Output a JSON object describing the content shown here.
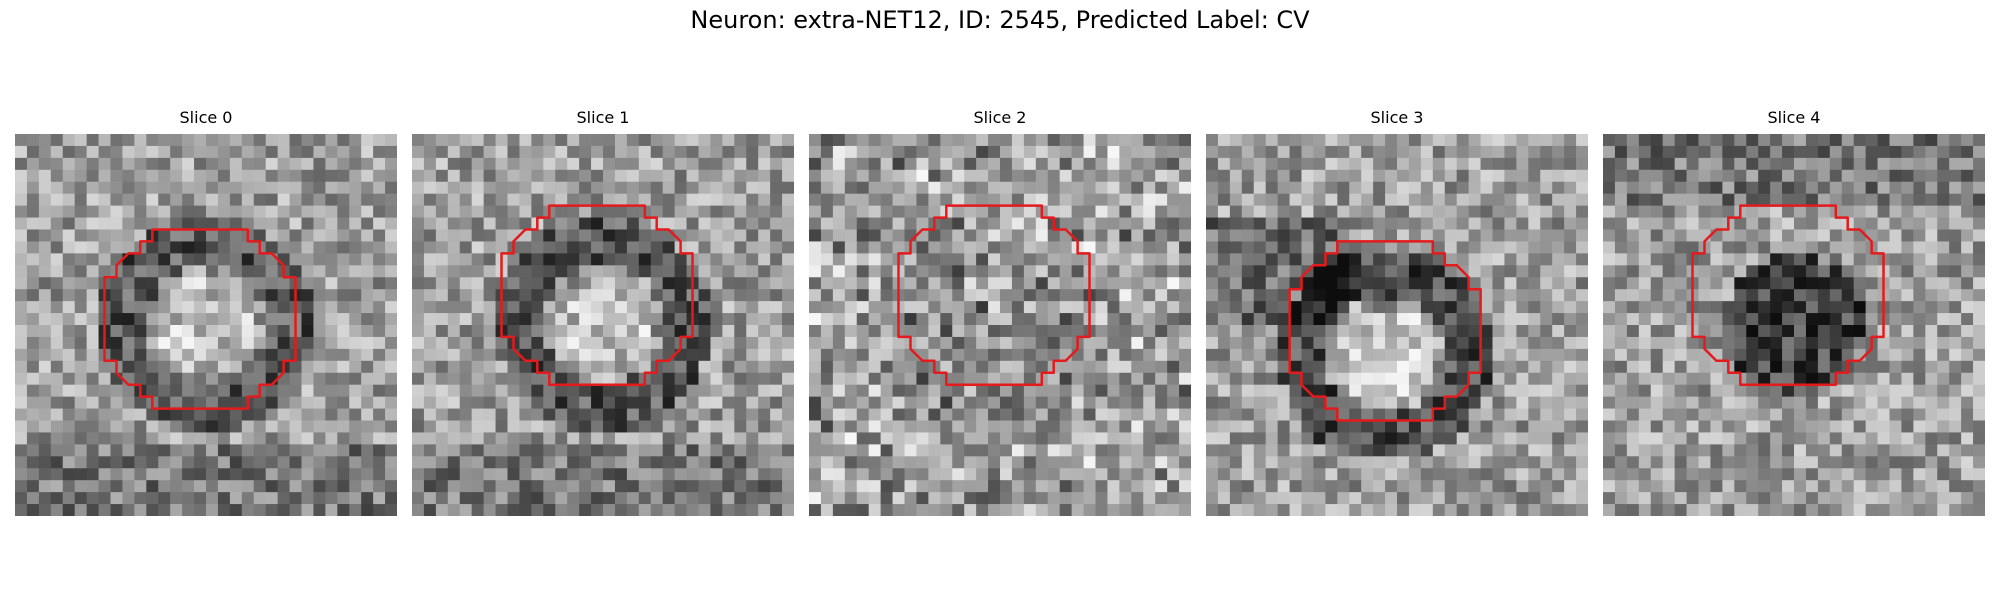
{
  "figure": {
    "title": "Neuron: extra-NET12, ID: 2545, Predicted Label: CV"
  },
  "colors": {
    "contour": "#e41a1c",
    "background": "#ffffff"
  },
  "panels": [
    {
      "title": "Slice 0",
      "seed": 11,
      "pattern": "ring-bright-center",
      "contour_shift": [
        0,
        0
      ]
    },
    {
      "title": "Slice 1",
      "seed": 23,
      "pattern": "ring-bright-center",
      "contour_shift": [
        0,
        -2
      ]
    },
    {
      "title": "Slice 2",
      "seed": 37,
      "pattern": "noisy",
      "contour_shift": [
        0,
        -2
      ]
    },
    {
      "title": "Slice 3",
      "seed": 51,
      "pattern": "ring-offset",
      "contour_shift": [
        -0.5,
        1
      ]
    },
    {
      "title": "Slice 4",
      "seed": 67,
      "pattern": "dark-core",
      "contour_shift": [
        0,
        -2
      ]
    }
  ]
}
